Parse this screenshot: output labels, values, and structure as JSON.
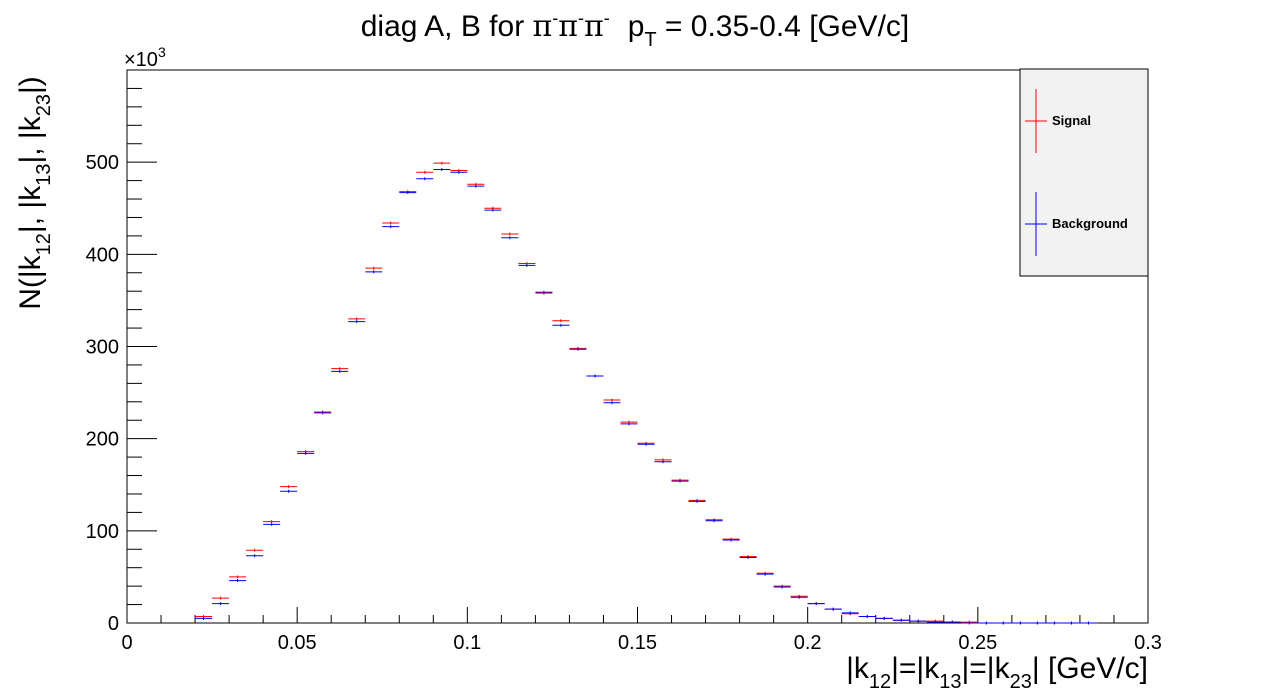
{
  "chart_data": {
    "type": "scatter",
    "title": {
      "prefix": "diag A, B for ",
      "pi_sym": "π",
      "pi_sup": "-",
      "pt_p": "p",
      "pt_sub": "T",
      "suffix": " = 0.35-0.4 [GeV/c]"
    },
    "xlabel": {
      "parts": [
        "|k",
        "12",
        "|=|k",
        "13",
        "|=|k",
        "23",
        "| [GeV/c]"
      ]
    },
    "ylabel": {
      "parts": [
        "N(|k",
        "12",
        "|, |k",
        "13",
        "|, |k",
        "23",
        "|)"
      ]
    },
    "yexp": {
      "base": "×10",
      "exp": "3"
    },
    "xlim": [
      0,
      0.3
    ],
    "ylim": [
      0,
      600
    ],
    "xticks": [
      {
        "v": 0,
        "label": "0"
      },
      {
        "v": 0.05,
        "label": "0.05"
      },
      {
        "v": 0.1,
        "label": "0.1"
      },
      {
        "v": 0.15,
        "label": "0.15"
      },
      {
        "v": 0.2,
        "label": "0.2"
      },
      {
        "v": 0.25,
        "label": "0.25"
      },
      {
        "v": 0.3,
        "label": "0.3"
      }
    ],
    "yticks": [
      {
        "v": 0,
        "label": "0"
      },
      {
        "v": 100,
        "label": "100"
      },
      {
        "v": 200,
        "label": "200"
      },
      {
        "v": 300,
        "label": "300"
      },
      {
        "v": 400,
        "label": "400"
      },
      {
        "v": 500,
        "label": "500"
      }
    ],
    "bin_width": 0.005,
    "legend": {
      "position": "top-right"
    },
    "series": [
      {
        "name": "Signal",
        "color": "#ff0000",
        "x": [
          0.0225,
          0.0275,
          0.0325,
          0.0375,
          0.0425,
          0.0475,
          0.0525,
          0.0575,
          0.0625,
          0.0675,
          0.0725,
          0.0775,
          0.0825,
          0.0875,
          0.0925,
          0.0975,
          0.1025,
          0.1075,
          0.1125,
          0.1175,
          0.1225,
          0.1275,
          0.1325,
          0.1375,
          0.1425,
          0.1475,
          0.1525,
          0.1575,
          0.1625,
          0.1675,
          0.1725,
          0.1775,
          0.1825,
          0.1875,
          0.1925,
          0.1975,
          0.2025,
          0.2075,
          0.2125,
          0.2175,
          0.2225,
          0.2275,
          0.2325,
          0.2375,
          0.2425,
          0.2475,
          0.2525,
          0.2575,
          0.2625,
          0.2675,
          0.2725,
          0.2775,
          0.2825
        ],
        "y": [
          7,
          27,
          50,
          79,
          110,
          148,
          186,
          229,
          276,
          330,
          385,
          434,
          468,
          489,
          499,
          491,
          476,
          450,
          422,
          390,
          359,
          328,
          298,
          268,
          242,
          218,
          195,
          177,
          155,
          133,
          112,
          91,
          72,
          54,
          40,
          29,
          21,
          15,
          10,
          7,
          5,
          3,
          2,
          2,
          1,
          1,
          0,
          0,
          0,
          0,
          0,
          0,
          0
        ]
      },
      {
        "name": "Background",
        "color": "#0000ff",
        "x": [
          0.0225,
          0.0275,
          0.0325,
          0.0375,
          0.0425,
          0.0475,
          0.0525,
          0.0575,
          0.0625,
          0.0675,
          0.0725,
          0.0775,
          0.0825,
          0.0875,
          0.0925,
          0.0975,
          0.1025,
          0.1075,
          0.1125,
          0.1175,
          0.1225,
          0.1275,
          0.1325,
          0.1375,
          0.1425,
          0.1475,
          0.1525,
          0.1575,
          0.1625,
          0.1675,
          0.1725,
          0.1775,
          0.1825,
          0.1875,
          0.1925,
          0.1975,
          0.2025,
          0.2075,
          0.2125,
          0.2175,
          0.2225,
          0.2275,
          0.2325,
          0.2375,
          0.2425,
          0.2475,
          0.2525,
          0.2575,
          0.2625,
          0.2675,
          0.2725,
          0.2775,
          0.2825
        ],
        "y": [
          5,
          21,
          46,
          73,
          107,
          143,
          184,
          228,
          273,
          327,
          381,
          430,
          467,
          482,
          492,
          489,
          474,
          448,
          418,
          388,
          358,
          323,
          297,
          268,
          239,
          216,
          194,
          175,
          154,
          132,
          111,
          90,
          71,
          53,
          39,
          28,
          21,
          15,
          11,
          7,
          5,
          3,
          2,
          1,
          1,
          0,
          0,
          0,
          0,
          0,
          0,
          0,
          0
        ]
      }
    ]
  }
}
